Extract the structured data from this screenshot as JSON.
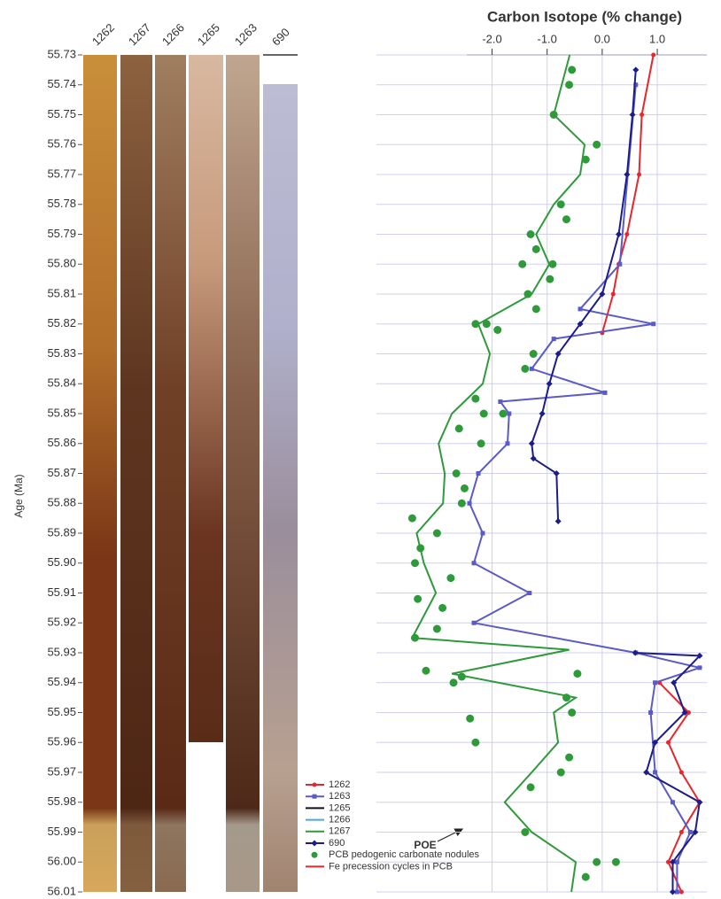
{
  "chart_data": {
    "type": "profile",
    "title": "Carbon Isotope (% change)",
    "y_label": "Age (Ma)",
    "core_columns": [
      "1262",
      "1267",
      "1266",
      "1265",
      "1263",
      "690"
    ],
    "annotation": "POE",
    "ylim": [
      55.73,
      56.01
    ],
    "yticks": [
      55.73,
      55.74,
      55.75,
      55.76,
      55.77,
      55.78,
      55.79,
      {
        "value": 55.8,
        "label": "55.80"
      },
      55.81,
      55.82,
      55.83,
      55.84,
      55.85,
      55.86,
      55.87,
      55.88,
      55.89,
      {
        "value": 55.9,
        "label": "55.90"
      },
      55.91,
      55.92,
      55.93,
      55.94,
      55.95,
      55.96,
      55.97,
      55.98,
      55.99,
      {
        "value": 56,
        "label": "56.00"
      },
      56.01
    ],
    "xlim": [
      -4.1,
      1.9
    ],
    "xticks": [
      {
        "value": -2,
        "label": "-2.0"
      },
      {
        "value": -1,
        "label": "-1.0"
      },
      {
        "value": 0,
        "label": "0.0"
      },
      {
        "value": 1,
        "label": "1.0"
      }
    ],
    "grid": true,
    "series": [
      {
        "name": "1262",
        "color": "#e8262b",
        "marker": "circle",
        "values": [
          0.93,
          0.72,
          0.67,
          0.45,
          0.3,
          0.2,
          0.0,
          null,
          1.04,
          1.57,
          1.2,
          1.44,
          1.77,
          1.44,
          1.2,
          1.44
        ],
        "ages": [
          55.73,
          55.75,
          55.77,
          55.79,
          55.8,
          55.81,
          55.823,
          null,
          55.94,
          55.95,
          55.96,
          55.97,
          55.98,
          55.99,
          56.0,
          56.01
        ]
      },
      {
        "name": "1263",
        "color": "#5a5ac8",
        "marker": "square",
        "values": [
          0.61,
          0.32,
          -0.4,
          0.93,
          -0.88,
          -1.28,
          0.05,
          -1.85,
          -1.69,
          -1.72,
          -2.25,
          -2.41,
          -2.17,
          -2.33,
          -1.32,
          -2.33,
          0.61,
          1.77,
          0.96,
          0.88,
          0.96,
          1.28,
          1.6,
          1.36,
          1.36
        ],
        "ages": [
          55.74,
          55.8,
          55.815,
          55.82,
          55.825,
          55.835,
          55.843,
          55.846,
          55.85,
          55.86,
          55.87,
          55.88,
          55.89,
          55.9,
          55.91,
          55.92,
          55.93,
          55.935,
          55.94,
          55.95,
          55.97,
          55.98,
          55.99,
          56.0,
          56.01
        ]
      },
      {
        "name": "1265",
        "color": "#111111",
        "marker": "none",
        "values": [],
        "ages": []
      },
      {
        "name": "1266",
        "color": "#4aa8e0",
        "marker": "none",
        "values": [],
        "ages": []
      },
      {
        "name": "1267",
        "color": "#2e9a3a",
        "marker": "none",
        "values": [
          -0.59,
          -0.88,
          -0.32,
          -0.4,
          -0.88,
          -1.2,
          -0.96,
          -1.28,
          -2.25,
          -2.04,
          -2.17,
          -2.73,
          -2.97,
          -2.86,
          -2.89,
          -3.37,
          -3.24,
          -3.02,
          -3.45,
          -0.6,
          -2.73,
          -0.48,
          -0.88,
          -0.8,
          -1.28,
          -1.77,
          -1.28,
          -0.48,
          -0.56
        ],
        "ages": [
          55.73,
          55.75,
          55.76,
          55.77,
          55.78,
          55.79,
          55.8,
          55.81,
          55.82,
          55.83,
          55.84,
          55.85,
          55.86,
          55.87,
          55.88,
          55.89,
          55.9,
          55.91,
          55.925,
          55.929,
          55.937,
          55.945,
          55.95,
          55.96,
          55.97,
          55.98,
          55.99,
          56.0,
          56.01
        ]
      },
      {
        "name": "690",
        "color": "#1c1c8a",
        "marker": "diamond",
        "values": [
          0.61,
          0.55,
          0.45,
          0.3,
          0.0,
          -0.4,
          -0.8,
          -0.96,
          -1.09,
          -1.28,
          -1.25,
          -0.83,
          -0.8,
          null,
          0.6,
          1.77,
          1.3,
          1.5,
          0.96,
          0.8,
          1.77,
          1.69,
          1.28,
          1.28
        ],
        "ages": [
          55.735,
          55.75,
          55.77,
          55.79,
          55.81,
          55.82,
          55.83,
          55.84,
          55.85,
          55.86,
          55.865,
          55.87,
          55.886,
          null,
          55.93,
          55.931,
          55.94,
          55.95,
          55.96,
          55.97,
          55.98,
          55.99,
          56.0,
          56.01
        ]
      },
      {
        "name": "PCB pedogenic carbonate nodules",
        "color": "#2e9a3a",
        "marker": "dot",
        "style": "dots",
        "values": [
          -0.55,
          -0.6,
          -0.88,
          -0.1,
          -0.3,
          -0.75,
          -0.65,
          -1.3,
          -1.2,
          -0.9,
          -1.45,
          -0.95,
          -1.35,
          -1.2,
          -2.3,
          -2.1,
          -1.9,
          -1.25,
          -1.4,
          -2.3,
          -1.8,
          -2.15,
          -2.6,
          -2.2,
          -2.65,
          -2.5,
          -2.55,
          -3.45,
          -3.0,
          -3.3,
          -3.4,
          -2.75,
          -3.35,
          -2.9,
          -3.4,
          -3.0,
          -3.2,
          -0.45,
          -2.7,
          -2.55,
          -0.65,
          -0.55,
          -2.4,
          -2.3,
          -0.6,
          -0.75,
          -1.3,
          -1.4,
          -0.1,
          0.25,
          -0.3
        ],
        "ages": [
          55.735,
          55.74,
          55.75,
          55.76,
          55.765,
          55.78,
          55.785,
          55.79,
          55.795,
          55.8,
          55.8,
          55.805,
          55.81,
          55.815,
          55.82,
          55.82,
          55.822,
          55.83,
          55.835,
          55.845,
          55.85,
          55.85,
          55.855,
          55.86,
          55.87,
          55.875,
          55.88,
          55.885,
          55.89,
          55.895,
          55.9,
          55.905,
          55.912,
          55.915,
          55.925,
          55.922,
          55.936,
          55.937,
          55.94,
          55.938,
          55.945,
          55.95,
          55.952,
          55.96,
          55.965,
          55.97,
          55.975,
          55.99,
          56.0,
          56.0,
          56.005
        ]
      },
      {
        "name": "Fe precession cycles in PCB",
        "color": "#e8262b",
        "marker": "none",
        "style": "plain",
        "values": [],
        "ages": []
      }
    ]
  }
}
